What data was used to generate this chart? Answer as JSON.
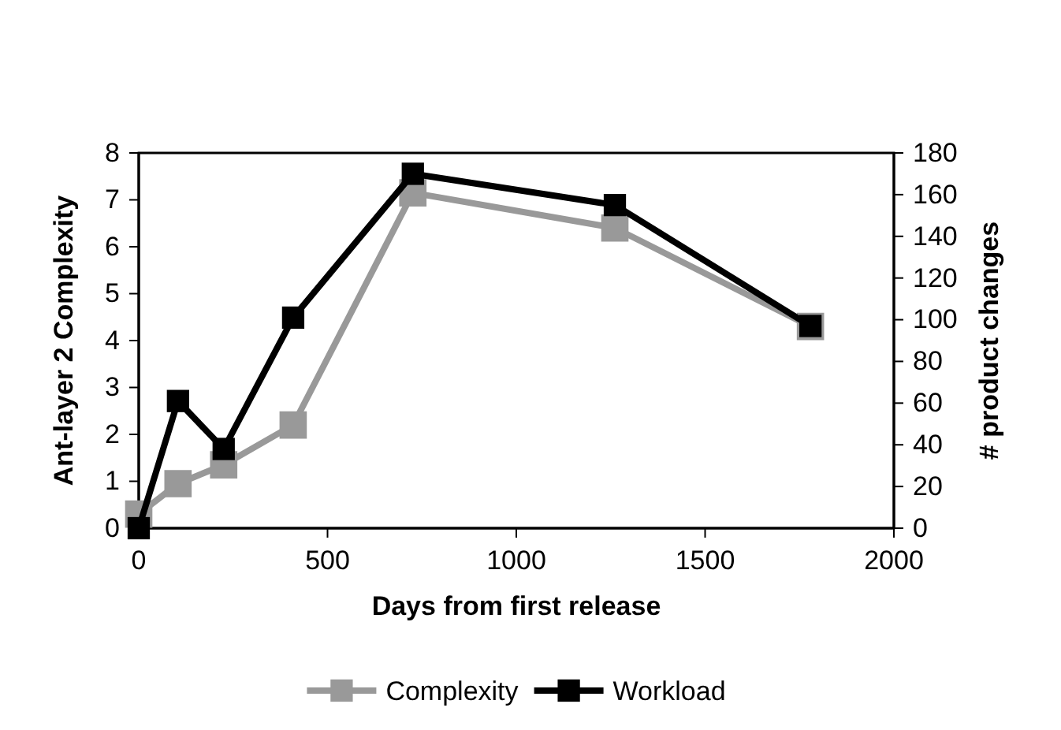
{
  "chart_data": {
    "type": "line",
    "xlabel": "Days from first release",
    "ylabel": "Ant-layer 2 Complexity",
    "y2label": "# product changes",
    "xlim": [
      0,
      2000
    ],
    "xticks": [
      0,
      500,
      1000,
      1500,
      2000
    ],
    "ylim": [
      0,
      8
    ],
    "yticks": [
      0,
      1,
      2,
      3,
      4,
      5,
      6,
      7,
      8
    ],
    "y2lim": [
      0,
      180
    ],
    "y2ticks": [
      0,
      20,
      40,
      60,
      80,
      100,
      120,
      140,
      160,
      180
    ],
    "x": [
      0,
      104,
      225,
      409,
      726,
      1261,
      1779
    ],
    "series": [
      {
        "name": "Complexity",
        "color": "#999999",
        "values": [
          0.3,
          0.95,
          1.35,
          2.2,
          7.15,
          6.4,
          4.3
        ]
      },
      {
        "name": "Workload",
        "color": "#000000",
        "axis": "y2",
        "values": [
          0,
          61,
          38,
          101,
          170,
          155,
          97
        ]
      }
    ],
    "marker": "square",
    "line_style": "solid",
    "legend": "bottom",
    "grid": false
  }
}
